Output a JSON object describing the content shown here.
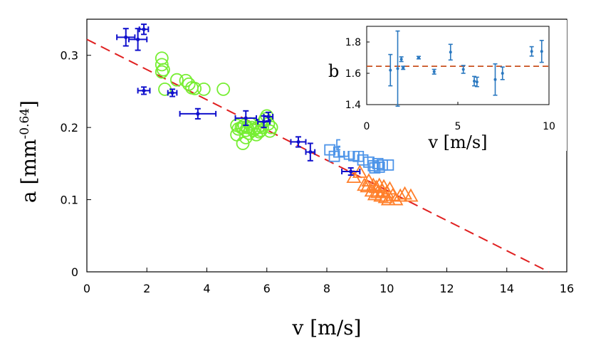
{
  "chart_data": [
    {
      "type": "scatter",
      "role": "main",
      "xlabel": "v [m/s]",
      "ylabel_base": "a [mm",
      "ylabel_exp": "-0.64",
      "ylabel_close": "]",
      "xlim": [
        0,
        16
      ],
      "ylim": [
        0,
        0.35
      ],
      "xticks": [
        0,
        2,
        4,
        6,
        8,
        10,
        12,
        14,
        16
      ],
      "yticks": [
        0,
        0.1,
        0.2,
        0.3
      ],
      "ytick_labels": [
        "0",
        "0.1",
        "0.2",
        "0.3"
      ],
      "fit_line": {
        "color": "#e02020",
        "style": "dashed",
        "points": [
          [
            0,
            0.322
          ],
          [
            15.4,
            0
          ]
        ]
      },
      "series": [
        {
          "name": "errorbar data",
          "marker": "dot",
          "color": "#1010cc",
          "points": [
            {
              "x": 1.3,
              "y": 0.325,
              "xerr": 0.3,
              "yerr": 0.012
            },
            {
              "x": 1.7,
              "y": 0.322,
              "xerr": 0.3,
              "yerr": 0.015
            },
            {
              "x": 1.9,
              "y": 0.336,
              "xerr": 0.15,
              "yerr": 0.007
            },
            {
              "x": 1.9,
              "y": 0.251,
              "xerr": 0.2,
              "yerr": 0.005
            },
            {
              "x": 2.85,
              "y": 0.248,
              "xerr": 0.15,
              "yerr": 0.005
            },
            {
              "x": 3.7,
              "y": 0.219,
              "xerr": 0.6,
              "yerr": 0.007
            },
            {
              "x": 5.3,
              "y": 0.213,
              "xerr": 0.35,
              "yerr": 0.01
            },
            {
              "x": 5.9,
              "y": 0.208,
              "xerr": 0.2,
              "yerr": 0.008
            },
            {
              "x": 6.05,
              "y": 0.215,
              "xerr": 0.15,
              "yerr": 0.006
            },
            {
              "x": 7.05,
              "y": 0.18,
              "xerr": 0.25,
              "yerr": 0.007
            },
            {
              "x": 7.45,
              "y": 0.166,
              "xerr": 0.15,
              "yerr": 0.012
            },
            {
              "x": 8.8,
              "y": 0.139,
              "xerr": 0.3,
              "yerr": 0.005
            }
          ]
        },
        {
          "name": "circles",
          "marker": "circle",
          "color": "#77ee33",
          "points": [
            [
              2.5,
              0.296
            ],
            [
              2.5,
              0.287
            ],
            [
              2.55,
              0.28
            ],
            [
              2.5,
              0.277
            ],
            [
              2.6,
              0.253
            ],
            [
              3.0,
              0.266
            ],
            [
              3.3,
              0.265
            ],
            [
              3.4,
              0.26
            ],
            [
              3.5,
              0.255
            ],
            [
              3.6,
              0.254
            ],
            [
              3.9,
              0.253
            ],
            [
              4.55,
              0.253
            ],
            [
              5.0,
              0.203
            ],
            [
              5.05,
              0.198
            ],
            [
              5.15,
              0.2
            ],
            [
              5.2,
              0.2
            ],
            [
              5.25,
              0.203
            ],
            [
              5.3,
              0.196
            ],
            [
              5.35,
              0.2
            ],
            [
              5.4,
              0.192
            ],
            [
              5.45,
              0.205
            ],
            [
              5.5,
              0.2
            ],
            [
              5.55,
              0.196
            ],
            [
              5.6,
              0.198
            ],
            [
              5.65,
              0.19
            ],
            [
              5.7,
              0.2
            ],
            [
              5.75,
              0.194
            ],
            [
              5.8,
              0.196
            ],
            [
              5.85,
              0.2
            ],
            [
              5.9,
              0.208
            ],
            [
              5.95,
              0.212
            ],
            [
              6.0,
              0.216
            ],
            [
              6.05,
              0.205
            ],
            [
              6.1,
              0.195
            ],
            [
              6.15,
              0.2
            ],
            [
              5.0,
              0.19
            ],
            [
              5.2,
              0.178
            ],
            [
              5.3,
              0.186
            ]
          ]
        },
        {
          "name": "squares",
          "marker": "square",
          "color": "#4d94e8",
          "points": [
            [
              8.1,
              0.169
            ],
            [
              8.25,
              0.16
            ],
            [
              8.4,
              0.166
            ],
            [
              8.5,
              0.176
            ],
            [
              8.55,
              0.167
            ],
            [
              8.75,
              0.163
            ],
            [
              8.9,
              0.161
            ],
            [
              9.05,
              0.16
            ],
            [
              9.2,
              0.155
            ],
            [
              9.4,
              0.152
            ],
            [
              9.55,
              0.147
            ],
            [
              9.6,
              0.144
            ],
            [
              9.7,
              0.15
            ],
            [
              9.75,
              0.145
            ],
            [
              9.85,
              0.148
            ],
            [
              10.05,
              0.148
            ]
          ]
        },
        {
          "name": "triangles",
          "marker": "triangle",
          "color": "#ff7f2a",
          "points": [
            [
              8.9,
              0.131
            ],
            [
              9.1,
              0.138
            ],
            [
              9.25,
              0.12
            ],
            [
              9.35,
              0.118
            ],
            [
              9.4,
              0.126
            ],
            [
              9.5,
              0.112
            ],
            [
              9.55,
              0.12
            ],
            [
              9.6,
              0.107
            ],
            [
              9.65,
              0.117
            ],
            [
              9.7,
              0.11
            ],
            [
              9.75,
              0.12
            ],
            [
              9.8,
              0.105
            ],
            [
              9.85,
              0.112
            ],
            [
              9.9,
              0.118
            ],
            [
              9.95,
              0.103
            ],
            [
              10.0,
              0.11
            ],
            [
              10.05,
              0.1
            ],
            [
              10.1,
              0.115
            ],
            [
              10.2,
              0.106
            ],
            [
              10.3,
              0.1
            ],
            [
              10.45,
              0.105
            ],
            [
              10.6,
              0.108
            ],
            [
              10.8,
              0.105
            ]
          ]
        }
      ]
    },
    {
      "type": "scatter",
      "role": "inset",
      "panel_label": "b",
      "xlabel": "v [m/s]",
      "xlim": [
        0,
        10
      ],
      "ylim": [
        1.4,
        1.9
      ],
      "xticks": [
        0,
        5,
        10
      ],
      "yticks": [
        1.4,
        1.6,
        1.8
      ],
      "ytick_labels": [
        "1.4",
        "1.6",
        "1.8"
      ],
      "ref_line": {
        "y": 1.645,
        "color": "#c8501e",
        "style": "dashed"
      },
      "series": [
        {
          "name": "b values",
          "marker": "dot",
          "color": "#2a78c0",
          "points": [
            {
              "x": 1.3,
              "y": 1.62,
              "yerr": 0.1
            },
            {
              "x": 1.7,
              "y": 1.63,
              "yerr": 0.24
            },
            {
              "x": 1.9,
              "y": 1.69,
              "yerr": 0.015
            },
            {
              "x": 2.0,
              "y": 1.635,
              "yerr": 0.01
            },
            {
              "x": 2.85,
              "y": 1.7,
              "yerr": 0.008
            },
            {
              "x": 3.7,
              "y": 1.61,
              "yerr": 0.015
            },
            {
              "x": 4.6,
              "y": 1.735,
              "yerr": 0.05
            },
            {
              "x": 5.3,
              "y": 1.625,
              "yerr": 0.025
            },
            {
              "x": 5.9,
              "y": 1.55,
              "yerr": 0.03
            },
            {
              "x": 6.05,
              "y": 1.545,
              "yerr": 0.03
            },
            {
              "x": 7.05,
              "y": 1.56,
              "yerr": 0.1
            },
            {
              "x": 7.45,
              "y": 1.6,
              "yerr": 0.04
            },
            {
              "x": 9.05,
              "y": 1.74,
              "yerr": 0.03
            },
            {
              "x": 9.6,
              "y": 1.74,
              "yerr": 0.07
            }
          ]
        }
      ]
    }
  ]
}
